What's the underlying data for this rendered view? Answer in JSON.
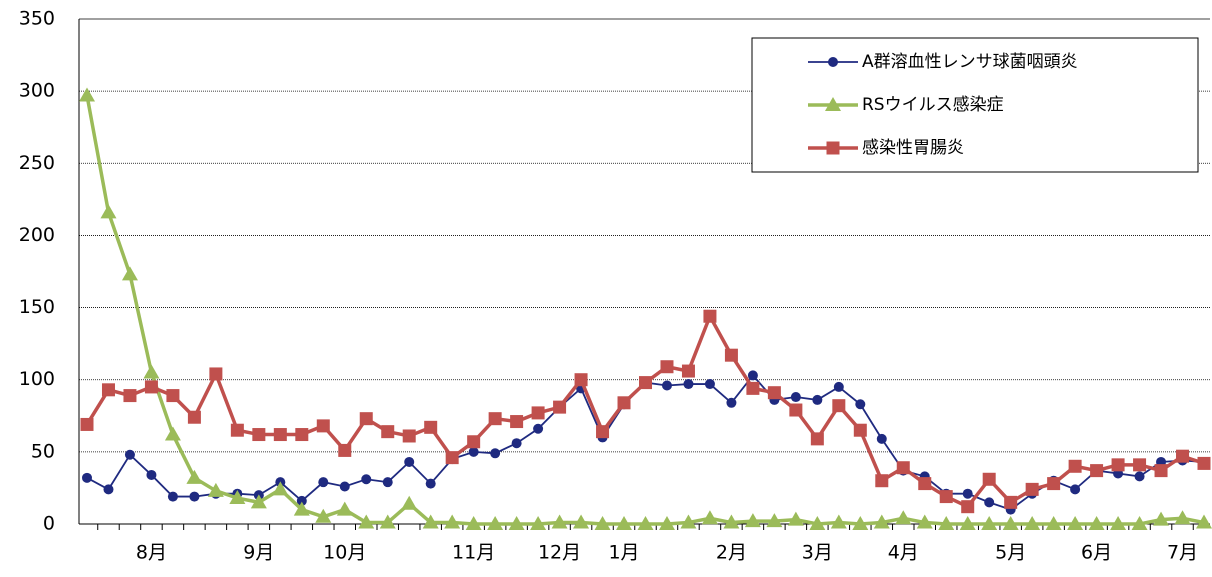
{
  "chart_data": {
    "type": "line",
    "categories": [
      null,
      null,
      null,
      "8月",
      null,
      null,
      null,
      null,
      "9月",
      null,
      null,
      null,
      "10月",
      null,
      null,
      null,
      null,
      null,
      "11月",
      null,
      null,
      null,
      "12月",
      null,
      null,
      "1月",
      null,
      null,
      null,
      null,
      "2月",
      null,
      null,
      null,
      "3月",
      null,
      null,
      null,
      "4月",
      null,
      null,
      null,
      null,
      "5月",
      null,
      null,
      null,
      "6月",
      null,
      null,
      null,
      "7月",
      null
    ],
    "series": [
      {
        "name": "A群溶血性レンサ球菌咽頭炎",
        "color": "#1f2a80",
        "marker": "circle",
        "values": [
          32,
          24,
          48,
          34,
          19,
          19,
          21,
          21,
          20,
          29,
          16,
          29,
          26,
          31,
          29,
          43,
          28,
          45,
          50,
          49,
          56,
          66,
          81,
          94,
          60,
          83,
          98,
          96,
          97,
          97,
          84,
          103,
          86,
          88,
          86,
          95,
          83,
          59,
          37,
          33,
          21,
          21,
          15,
          10,
          21,
          30,
          24,
          37,
          35,
          33,
          43,
          44,
          43
        ]
      },
      {
        "name": "RSウイルス感染症",
        "color": "#9bbb59",
        "marker": "triangle",
        "values": [
          297,
          216,
          173,
          105,
          62,
          32,
          23,
          18,
          15,
          24,
          10,
          5,
          10,
          1,
          1,
          14,
          1,
          1,
          0,
          0,
          0,
          0,
          1,
          1,
          0,
          0,
          0,
          0,
          1,
          4,
          1,
          2,
          2,
          3,
          0,
          1,
          0,
          1,
          4,
          1,
          0,
          0,
          0,
          0,
          0,
          0,
          0,
          0,
          0,
          0,
          3,
          4,
          1
        ]
      },
      {
        "name": "感染性胃腸炎",
        "color": "#c0504d",
        "marker": "square",
        "values": [
          69,
          93,
          89,
          95,
          89,
          74,
          104,
          65,
          62,
          62,
          62,
          68,
          51,
          73,
          64,
          61,
          67,
          46,
          57,
          73,
          71,
          77,
          81,
          100,
          64,
          84,
          98,
          109,
          106,
          144,
          117,
          94,
          91,
          79,
          59,
          82,
          65,
          30,
          39,
          28,
          19,
          12,
          31,
          15,
          24,
          28,
          40,
          37,
          41,
          41,
          37,
          47,
          42
        ]
      }
    ],
    "ylim": [
      0,
      350
    ],
    "yticks": [
      0,
      50,
      100,
      150,
      200,
      250,
      300,
      350
    ],
    "grid": true,
    "legend": "top-right"
  }
}
